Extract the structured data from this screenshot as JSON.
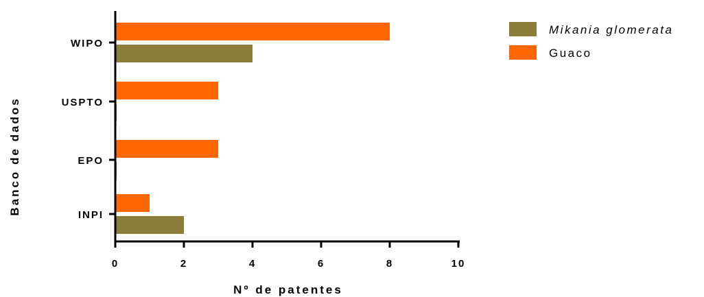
{
  "chart_data": {
    "type": "bar",
    "orientation": "horizontal",
    "categories": [
      "WIPO",
      "USPTO",
      "EPO",
      "INPI"
    ],
    "series": [
      {
        "name": "Guaco",
        "color": "#FF6600",
        "values": [
          8,
          3,
          3,
          1
        ]
      },
      {
        "name": "Mikania glomerata",
        "color": "#8B7D3A",
        "values": [
          4,
          0,
          0,
          2
        ]
      }
    ],
    "xlabel": "Nº de patentes",
    "ylabel": "Banco de dados",
    "xlim": [
      0,
      10
    ],
    "xticks": [
      "0",
      "2",
      "4",
      "6",
      "8",
      "10"
    ],
    "grid": false,
    "legend": {
      "position": "top-right",
      "entries": [
        {
          "label": "Mikania glomerata",
          "color": "#8B7D3A",
          "italic": true
        },
        {
          "label": "Guaco",
          "color": "#FF6600",
          "italic": false
        }
      ]
    }
  }
}
